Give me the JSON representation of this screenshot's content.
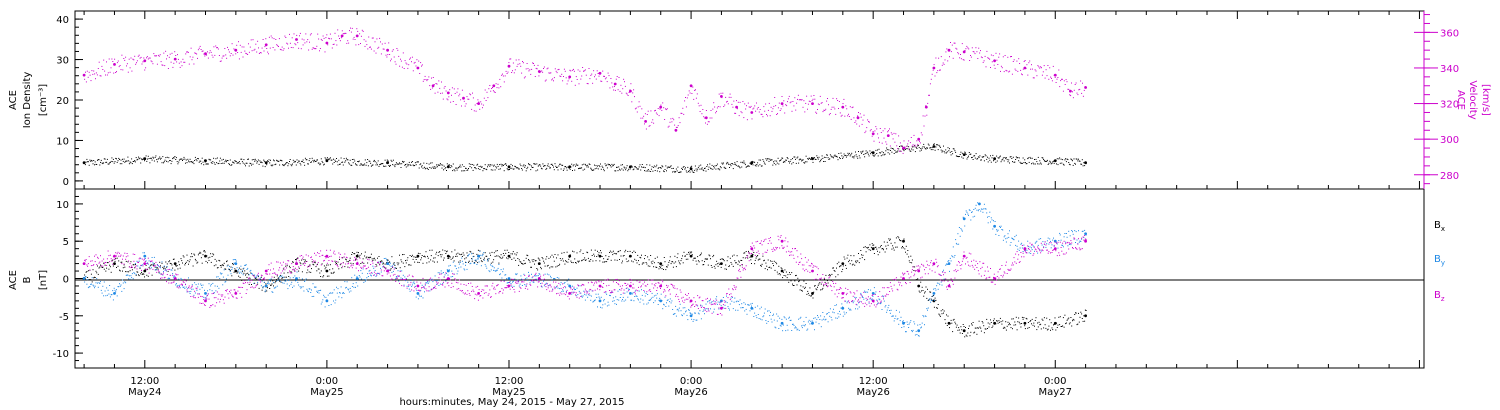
{
  "colors": {
    "black": "#000000",
    "magenta": "#cc00cc",
    "blue": "#1e88e5"
  },
  "xaxis": {
    "title": "hours:minutes, May 24, 2015 - May 27, 2015",
    "range_hours": [
      -4.6,
      84.3
    ],
    "ticks": [
      {
        "t": 0,
        "time": "12:00",
        "date": "May24"
      },
      {
        "t": 12,
        "time": "0:00",
        "date": "May25"
      },
      {
        "t": 24,
        "time": "12:00",
        "date": "May25"
      },
      {
        "t": 36,
        "time": "0:00",
        "date": "May26"
      },
      {
        "t": 48,
        "time": "12:00",
        "date": "May26"
      },
      {
        "t": 60,
        "time": "0:00",
        "date": "May27"
      }
    ]
  },
  "panel1": {
    "left_label": [
      "ACE",
      "Ion Density",
      "[cm⁻³]"
    ],
    "right_label": [
      "ACE",
      "Velocity",
      "[km/s]"
    ],
    "left_ticks": [
      "0",
      "10",
      "20",
      "30",
      "40"
    ],
    "right_ticks": [
      "280",
      "300",
      "320",
      "340",
      "360"
    ]
  },
  "panel2": {
    "left_label": [
      "ACE",
      "B",
      "[nT]"
    ],
    "left_ticks": [
      "-10",
      "-5",
      "0",
      "5",
      "10"
    ],
    "legend": [
      "Bx",
      "By",
      "Bz"
    ]
  },
  "chart_data": [
    {
      "type": "scatter",
      "title": "",
      "ylabel": "ACE Ion Density [cm⁻³]",
      "y2label": "ACE Velocity [km/s]",
      "ylim": [
        -2,
        42
      ],
      "y2lim": [
        272,
        372
      ],
      "series": [
        {
          "name": "Ion Density",
          "axis": "left",
          "color": "#000000",
          "x": [
            -4,
            0,
            4,
            8,
            12,
            16,
            20,
            24,
            28,
            32,
            36,
            40,
            44,
            48,
            50,
            52,
            54,
            56,
            60,
            62
          ],
          "y": [
            4.5,
            5.5,
            5,
            4.5,
            5,
            4.5,
            3.5,
            3.5,
            3.5,
            3.5,
            3,
            4.5,
            5.5,
            7,
            8,
            8.5,
            6.5,
            5.5,
            5,
            4.5
          ]
        },
        {
          "name": "Velocity",
          "axis": "right",
          "color": "#cc00cc",
          "x": [
            -4,
            -2,
            0,
            2,
            4,
            6,
            8,
            10,
            12,
            13,
            14,
            16,
            18,
            19,
            20,
            21,
            22,
            23,
            24,
            26,
            28,
            30,
            31,
            32,
            33,
            34,
            35,
            36,
            37,
            38,
            39,
            40,
            42,
            44,
            46,
            47,
            48,
            49,
            50,
            51,
            51.5,
            52,
            53,
            54,
            56,
            58,
            60,
            61,
            62
          ],
          "y": [
            336,
            342,
            344,
            345,
            348,
            350,
            353,
            356,
            354,
            358,
            358,
            350,
            340,
            330,
            326,
            323,
            320,
            330,
            341,
            338,
            335,
            337,
            331,
            327,
            310,
            318,
            305,
            330,
            312,
            324,
            318,
            315,
            320,
            320,
            318,
            312,
            303,
            302,
            295,
            300,
            318,
            340,
            350,
            349,
            344,
            340,
            336,
            327,
            329
          ]
        }
      ]
    },
    {
      "type": "scatter",
      "title": "",
      "ylabel": "ACE B [nT]",
      "ylim": [
        -12,
        12
      ],
      "series": [
        {
          "name": "Bx",
          "color": "#000000",
          "x": [
            -4,
            -2,
            0,
            2,
            4,
            6,
            8,
            10,
            12,
            14,
            16,
            18,
            20,
            22,
            24,
            26,
            28,
            30,
            32,
            34,
            36,
            38,
            40,
            42,
            44,
            46,
            48,
            50,
            51,
            52,
            53,
            54,
            56,
            58,
            60,
            62
          ],
          "y": [
            0,
            2,
            1,
            2,
            3,
            1,
            -1,
            2,
            1,
            3,
            2,
            3,
            3,
            3,
            3,
            2,
            3,
            3,
            3,
            2,
            3,
            2,
            3,
            1,
            -2,
            2,
            4,
            5,
            -1,
            -3,
            -6,
            -7,
            -6,
            -6,
            -6,
            -5
          ]
        },
        {
          "name": "By",
          "color": "#1e88e5",
          "x": [
            -4,
            -2,
            0,
            2,
            4,
            6,
            8,
            10,
            12,
            14,
            16,
            18,
            20,
            22,
            24,
            26,
            28,
            30,
            32,
            34,
            36,
            38,
            40,
            42,
            44,
            46,
            48,
            50,
            51,
            52,
            53,
            54,
            55,
            56,
            58,
            60,
            62
          ],
          "y": [
            0,
            -2,
            3,
            0,
            -2,
            2,
            -1,
            0,
            -3,
            0,
            2,
            -2,
            1,
            3,
            0,
            0,
            -1,
            -3,
            -2,
            -3,
            -5,
            -3,
            -4,
            -6,
            -6,
            -4,
            -2,
            -6,
            -7,
            -2,
            2,
            8,
            10,
            7,
            4,
            5,
            6
          ]
        },
        {
          "name": "Bz",
          "color": "#cc00cc",
          "x": [
            -4,
            -2,
            0,
            2,
            4,
            6,
            8,
            10,
            12,
            14,
            16,
            18,
            20,
            22,
            24,
            26,
            28,
            30,
            32,
            34,
            36,
            38,
            40,
            42,
            44,
            46,
            48,
            50,
            51,
            52,
            53,
            54,
            56,
            58,
            60,
            62
          ],
          "y": [
            2,
            3,
            2,
            0,
            -3,
            -2,
            1,
            2,
            3,
            2,
            1,
            -1,
            0,
            -2,
            -1,
            0,
            -2,
            -1,
            -1,
            -1,
            -3,
            -4,
            4,
            5,
            1,
            -2,
            -3,
            0,
            1,
            2,
            -1,
            3,
            0,
            4,
            4,
            5
          ]
        }
      ]
    }
  ]
}
